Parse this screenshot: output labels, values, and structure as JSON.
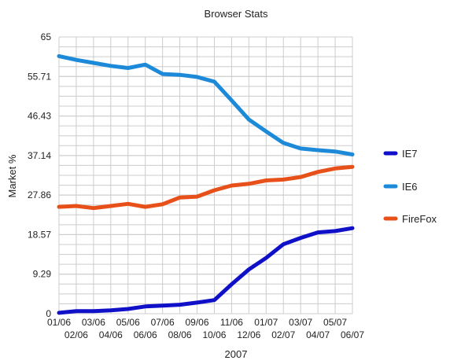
{
  "chart_data": {
    "type": "line",
    "title": "Browser Stats",
    "xlabel": "2007",
    "ylabel": "Market %",
    "ylim": [
      0,
      65
    ],
    "yticks": [
      "0",
      "9.29",
      "18.57",
      "27.86",
      "37.14",
      "46.43",
      "55.71",
      "65"
    ],
    "ytick_values": [
      0,
      9.29,
      18.57,
      27.86,
      37.14,
      46.43,
      55.71,
      65
    ],
    "categories": [
      "01/06",
      "02/06",
      "03/06",
      "04/06",
      "05/06",
      "06/06",
      "07/06",
      "08/06",
      "09/06",
      "10/06",
      "11/06",
      "12/06",
      "01/07",
      "02/07",
      "03/07",
      "04/07",
      "05/07",
      "06/07"
    ],
    "grid": true,
    "legend_position": "right",
    "series": [
      {
        "name": "IE7",
        "color": "#1010c8",
        "values": [
          0.2,
          0.6,
          0.6,
          0.8,
          1.1,
          1.7,
          1.9,
          2.1,
          2.6,
          3.2,
          6.9,
          10.4,
          13.1,
          16.3,
          17.8,
          19.1,
          19.4,
          20.1
        ]
      },
      {
        "name": "IE6",
        "color": "#1c8ad8",
        "values": [
          60.5,
          59.6,
          58.9,
          58.2,
          57.7,
          58.5,
          56.3,
          56.1,
          55.6,
          54.5,
          50.1,
          45.6,
          42.8,
          40.1,
          38.8,
          38.4,
          38.1,
          37.4
        ]
      },
      {
        "name": "FireFox",
        "color": "#e8501a",
        "values": [
          25.1,
          25.3,
          24.8,
          25.3,
          25.8,
          25.1,
          25.7,
          27.3,
          27.5,
          29.0,
          30.1,
          30.5,
          31.3,
          31.5,
          32.1,
          33.3,
          34.1,
          34.5
        ]
      }
    ]
  }
}
